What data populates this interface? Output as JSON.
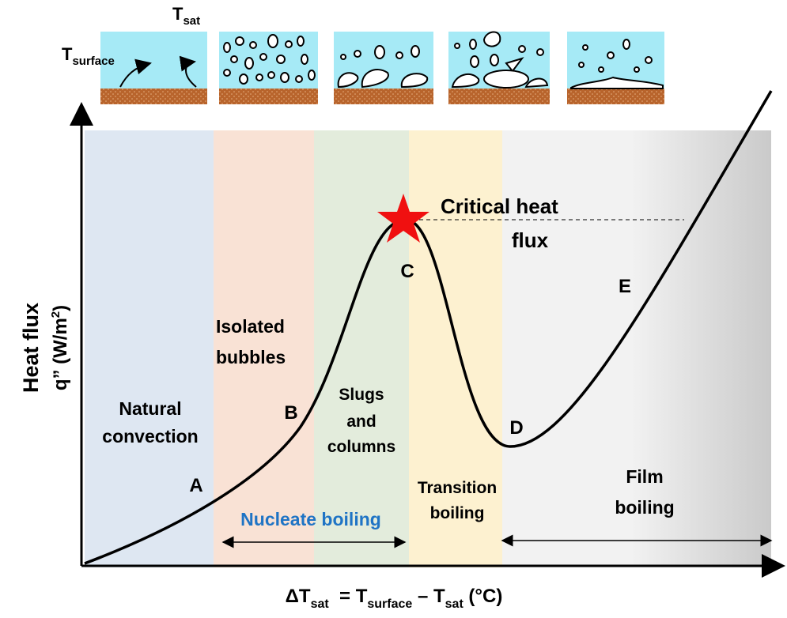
{
  "insets": {
    "t_sat": [
      "T",
      "sat"
    ],
    "t_surface": [
      "T",
      "surface"
    ]
  },
  "regions": {
    "natural_convection": [
      "Natural",
      "convection"
    ],
    "isolated_bubbles": [
      "Isolated",
      "bubbles"
    ],
    "slugs_and_columns": [
      "Slugs",
      "and",
      "columns"
    ],
    "transition_boiling": [
      "Transition",
      "boiling"
    ],
    "film_boiling": [
      "Film",
      "boiling"
    ],
    "nucleate_boiling": "Nucleate boiling"
  },
  "critical_heat_flux": [
    "Critical heat",
    "flux"
  ],
  "points": [
    "A",
    "B",
    "C",
    "D",
    "E"
  ],
  "y_axis_title": {
    "line1": "Heat flux",
    "line2": [
      "q” (W/m",
      "2",
      ")"
    ]
  },
  "x_axis_title": [
    "ΔT",
    "sat",
    "  = T",
    "surface",
    " – T",
    "sat",
    " (°C)"
  ]
}
